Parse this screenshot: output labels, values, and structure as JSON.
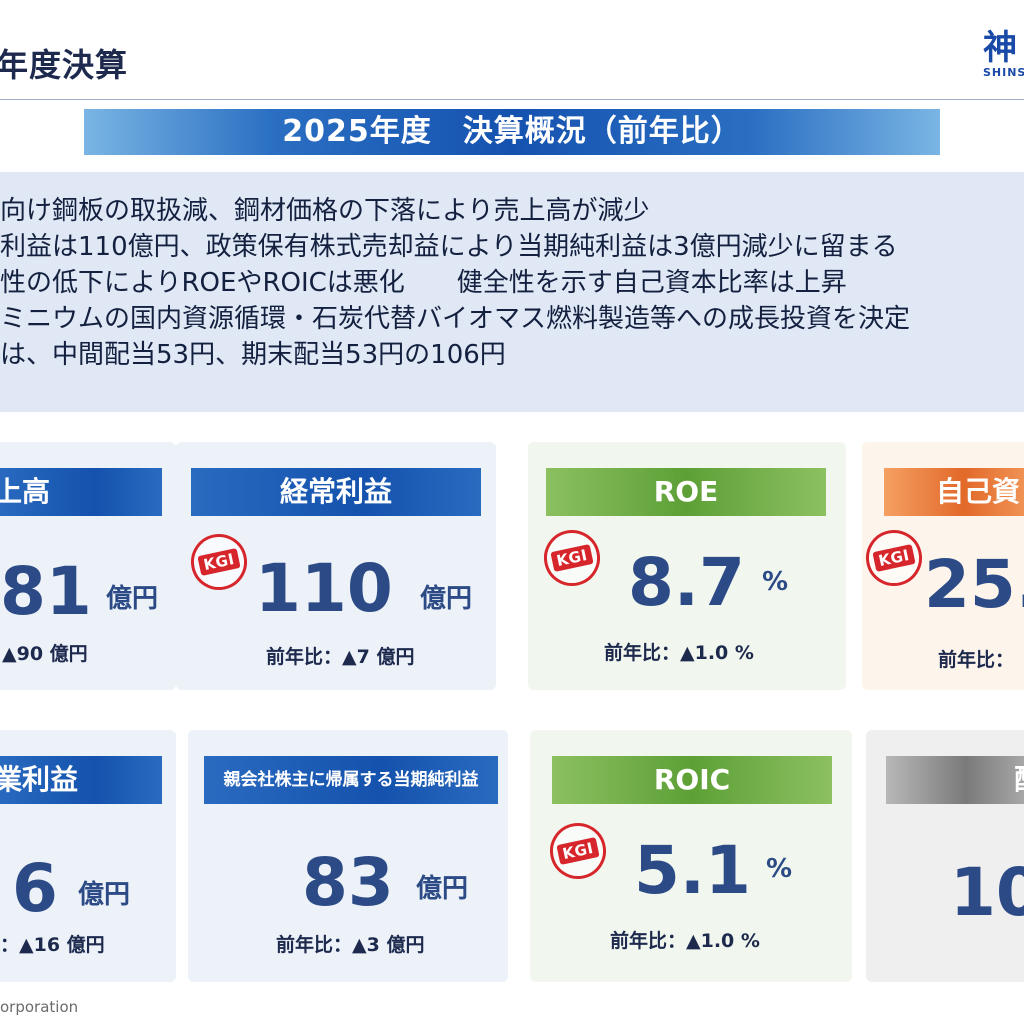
{
  "header": {
    "title": "年度決算",
    "logo_kanji": "神",
    "logo_sub": "SHINS"
  },
  "banner": {
    "title": "2025年度　決算概況（前年比）"
  },
  "summary": {
    "lines": [
      "向け鋼板の取扱減、鋼材価格の下落により売上高が減少",
      "利益は110億円、政策保有株式売却益により当期純利益は3億円減少に留まる",
      "性の低下によりROEやROICは悪化　　健全性を示す自己資本比率は上昇",
      "ミニウムの国内資源循環・石炭代替バイオマス燃料製造等への成長投資を決定",
      "は、中間配当53円、期末配当53円の106円"
    ]
  },
  "kgi_label": "KGI",
  "cards": {
    "sales": {
      "header": "上高",
      "value": "81",
      "unit": "億円",
      "sub": "▲90 億円"
    },
    "ordinary_profit": {
      "header": "経常利益",
      "value": "110",
      "unit": "億円",
      "sub": "前年比：▲7 億円"
    },
    "roe": {
      "header": "ROE",
      "value": "8.7",
      "unit": "%",
      "sub": "前年比：▲1.0 %"
    },
    "equity_ratio": {
      "header": "自己資",
      "value": "25.",
      "sub": "前年比："
    },
    "operating_profit": {
      "header": "業利益",
      "value": "6",
      "unit": "億円",
      "sub": "：▲16 億円"
    },
    "net_income": {
      "header": "親会社株主に帰属する当期純利益",
      "value": "83",
      "unit": "億円",
      "sub": "前年比：▲3 億円"
    },
    "roic": {
      "header": "ROIC",
      "value": "5.1",
      "unit": "%",
      "sub": "前年比：▲1.0 %"
    },
    "dividend": {
      "header": "配",
      "value": "10"
    }
  },
  "footer": {
    "text": "orporation"
  },
  "colors": {
    "accent_blue": "#1552b0",
    "green": "#5da036",
    "orange": "#e2692a",
    "gray": "#7a7a7a",
    "kgi_red": "#d6262b",
    "value_navy": "#2c4b86"
  }
}
